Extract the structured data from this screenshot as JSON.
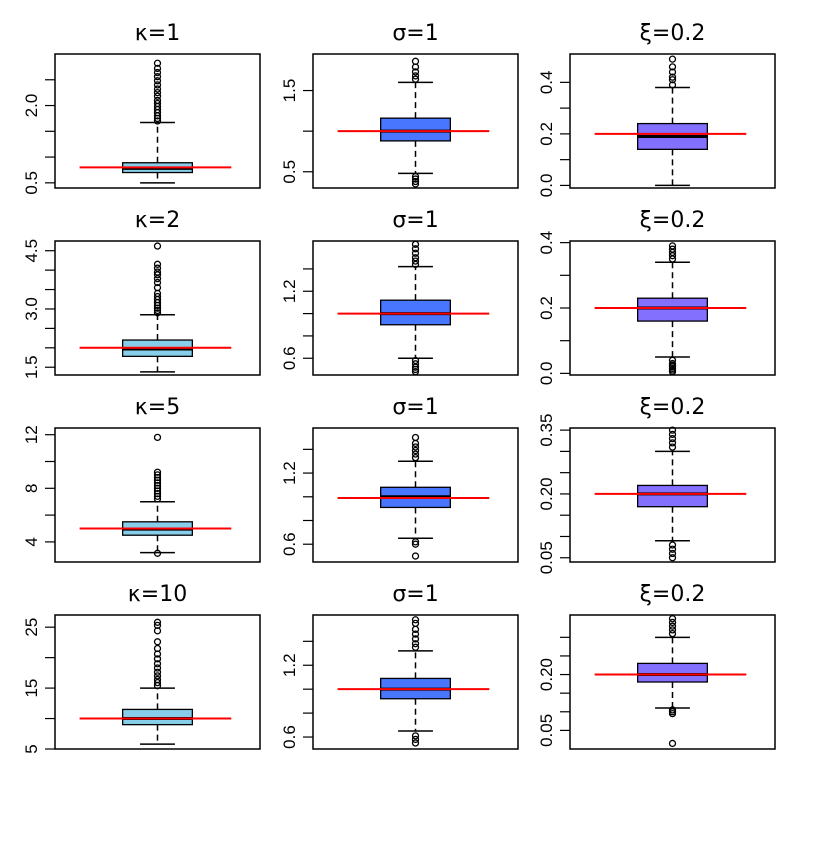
{
  "chart_data": [
    {
      "type": "boxplot",
      "title": "κ=1",
      "ylim": [
        0.4,
        3.0
      ],
      "yticks": [
        0.5,
        1.0,
        1.5,
        2.0,
        2.5
      ],
      "ytick_labels": [
        "0.5",
        "",
        "",
        "2.0",
        ""
      ],
      "box_color": "#87CEEB",
      "stats": {
        "lower_whisker": 0.5,
        "q1": 0.7,
        "median": 0.78,
        "q3": 0.89,
        "upper_whisker": 1.67
      },
      "outliers": [
        1.7,
        1.75,
        1.8,
        1.86,
        1.92,
        1.98,
        2.04,
        2.1,
        2.18,
        2.25,
        2.32,
        2.4,
        2.48,
        2.56,
        2.64,
        2.72,
        2.82
      ],
      "reference_line": 0.8
    },
    {
      "type": "boxplot",
      "title": "σ=1",
      "ylim": [
        0.3,
        1.95
      ],
      "yticks": [
        0.5,
        1.0,
        1.5
      ],
      "ytick_labels": [
        "0.5",
        "",
        "1.5"
      ],
      "box_color": "#4876FF",
      "stats": {
        "lower_whisker": 0.48,
        "q1": 0.88,
        "median": 1.0,
        "q3": 1.16,
        "upper_whisker": 1.6
      },
      "outliers": [
        0.35,
        0.38,
        0.41,
        0.44,
        1.64,
        1.68,
        1.73,
        1.79,
        1.86
      ],
      "reference_line": 1.0
    },
    {
      "type": "boxplot",
      "title": "ξ=0.2",
      "ylim": [
        -0.01,
        0.51
      ],
      "yticks": [
        0.0,
        0.1,
        0.2,
        0.3,
        0.4
      ],
      "ytick_labels": [
        "0.0",
        "",
        "0.2",
        "",
        "0.4"
      ],
      "box_color": "#8470FF",
      "stats": {
        "lower_whisker": 0.0,
        "q1": 0.14,
        "median": 0.19,
        "q3": 0.24,
        "upper_whisker": 0.38
      },
      "outliers": [
        0.39,
        0.41,
        0.42,
        0.44,
        0.46,
        0.49
      ],
      "reference_line": 0.2
    },
    {
      "type": "boxplot",
      "title": "κ=2",
      "ylim": [
        1.3,
        4.75
      ],
      "yticks": [
        1.5,
        2.0,
        2.5,
        3.0,
        3.5,
        4.0,
        4.5
      ],
      "ytick_labels": [
        "1.5",
        "",
        "",
        "3.0",
        "",
        "",
        "4.5"
      ],
      "box_color": "#87CEEB",
      "stats": {
        "lower_whisker": 1.38,
        "q1": 1.78,
        "median": 1.97,
        "q3": 2.2,
        "upper_whisker": 2.85
      },
      "outliers": [
        2.9,
        2.96,
        3.02,
        3.09,
        3.16,
        3.24,
        3.32,
        3.4,
        3.55,
        3.68,
        3.78,
        3.88,
        3.95,
        4.05,
        4.15,
        4.62
      ],
      "reference_line": 2.0
    },
    {
      "type": "boxplot",
      "title": "σ=1",
      "ylim": [
        0.45,
        1.65
      ],
      "yticks": [
        0.6,
        0.8,
        1.0,
        1.2,
        1.4
      ],
      "ytick_labels": [
        "0.6",
        "",
        "",
        "1.2",
        ""
      ],
      "box_color": "#4876FF",
      "stats": {
        "lower_whisker": 0.6,
        "q1": 0.9,
        "median": 1.0,
        "q3": 1.12,
        "upper_whisker": 1.42
      },
      "outliers": [
        0.48,
        0.5,
        0.52,
        0.55,
        0.58,
        1.44,
        1.47,
        1.5,
        1.54,
        1.58,
        1.62
      ],
      "reference_line": 1.0
    },
    {
      "type": "boxplot",
      "title": "ξ=0.2",
      "ylim": [
        -0.005,
        0.405
      ],
      "yticks": [
        0.0,
        0.1,
        0.2,
        0.3,
        0.4
      ],
      "ytick_labels": [
        "0.0",
        "",
        "0.2",
        "",
        "0.4"
      ],
      "box_color": "#8470FF",
      "stats": {
        "lower_whisker": 0.05,
        "q1": 0.16,
        "median": 0.2,
        "q3": 0.23,
        "upper_whisker": 0.34
      },
      "outliers": [
        0.005,
        0.01,
        0.015,
        0.02,
        0.025,
        0.03,
        0.04,
        0.35,
        0.36,
        0.37,
        0.38,
        0.39
      ],
      "reference_line": 0.2
    },
    {
      "type": "boxplot",
      "title": "κ=5",
      "ylim": [
        2.5,
        12.5
      ],
      "yticks": [
        4,
        6,
        8,
        10,
        12
      ],
      "ytick_labels": [
        "4",
        "",
        "8",
        "",
        "12"
      ],
      "box_color": "#87CEEB",
      "stats": {
        "lower_whisker": 3.2,
        "q1": 4.5,
        "median": 4.95,
        "q3": 5.5,
        "upper_whisker": 7.0
      },
      "outliers": [
        3.15,
        7.2,
        7.4,
        7.6,
        7.8,
        8.0,
        8.2,
        8.4,
        8.6,
        8.8,
        9.0,
        9.2,
        11.8
      ],
      "reference_line": 5.0
    },
    {
      "type": "boxplot",
      "title": "σ=1",
      "ylim": [
        0.45,
        1.58
      ],
      "yticks": [
        0.6,
        0.8,
        1.0,
        1.2,
        1.4
      ],
      "ytick_labels": [
        "0.6",
        "",
        "",
        "1.2",
        ""
      ],
      "box_color": "#4876FF",
      "stats": {
        "lower_whisker": 0.65,
        "q1": 0.91,
        "median": 1.0,
        "q3": 1.08,
        "upper_whisker": 1.3
      },
      "outliers": [
        0.5,
        0.6,
        0.62,
        1.33,
        1.36,
        1.39,
        1.42,
        1.45,
        1.5
      ],
      "reference_line": 0.99
    },
    {
      "type": "boxplot",
      "title": "ξ=0.2",
      "ylim": [
        0.04,
        0.355
      ],
      "yticks": [
        0.05,
        0.1,
        0.15,
        0.2,
        0.25,
        0.3,
        0.35
      ],
      "ytick_labels": [
        "0.05",
        "",
        "",
        "0.20",
        "",
        "",
        "0.35"
      ],
      "box_color": "#8470FF",
      "stats": {
        "lower_whisker": 0.09,
        "q1": 0.17,
        "median": 0.2,
        "q3": 0.22,
        "upper_whisker": 0.3
      },
      "outliers": [
        0.05,
        0.06,
        0.07,
        0.08,
        0.31,
        0.32,
        0.33,
        0.34,
        0.35
      ],
      "reference_line": 0.2
    },
    {
      "type": "boxplot",
      "title": "κ=10",
      "ylim": [
        5,
        27
      ],
      "yticks": [
        5,
        10,
        15,
        20,
        25
      ],
      "ytick_labels": [
        "5",
        "",
        "15",
        "",
        "25"
      ],
      "box_color": "#87CEEB",
      "stats": {
        "lower_whisker": 5.8,
        "q1": 9.0,
        "median": 10.0,
        "q3": 11.5,
        "upper_whisker": 15.0
      },
      "outliers": [
        15.4,
        15.9,
        16.4,
        17.0,
        17.6,
        18.3,
        19.0,
        19.8,
        20.6,
        21.5,
        22.6,
        24.4,
        25.3,
        25.8
      ],
      "reference_line": 10.0
    },
    {
      "type": "boxplot",
      "title": "σ=1",
      "ylim": [
        0.5,
        1.62
      ],
      "yticks": [
        0.6,
        0.8,
        1.0,
        1.2,
        1.4
      ],
      "ytick_labels": [
        "0.6",
        "",
        "",
        "1.2",
        ""
      ],
      "box_color": "#4876FF",
      "stats": {
        "lower_whisker": 0.65,
        "q1": 0.92,
        "median": 1.0,
        "q3": 1.09,
        "upper_whisker": 1.32
      },
      "outliers": [
        0.55,
        0.58,
        0.61,
        1.35,
        1.38,
        1.42,
        1.46,
        1.5,
        1.55,
        1.58
      ],
      "reference_line": 1.0
    },
    {
      "type": "boxplot",
      "title": "ξ=0.2",
      "ylim": [
        0.0,
        0.36
      ],
      "yticks": [
        0.05,
        0.1,
        0.15,
        0.2,
        0.25,
        0.3
      ],
      "ytick_labels": [
        "0.05",
        "",
        "",
        "0.20",
        "",
        ""
      ],
      "box_color": "#8470FF",
      "stats": {
        "lower_whisker": 0.11,
        "q1": 0.18,
        "median": 0.2,
        "q3": 0.23,
        "upper_whisker": 0.3
      },
      "outliers": [
        0.015,
        0.095,
        0.1,
        0.105,
        0.31,
        0.32,
        0.33,
        0.34,
        0.35
      ],
      "reference_line": 0.2
    }
  ],
  "colors": {
    "reference_line": "#FF0000",
    "axis": "#000000",
    "outlier": "#000000"
  }
}
